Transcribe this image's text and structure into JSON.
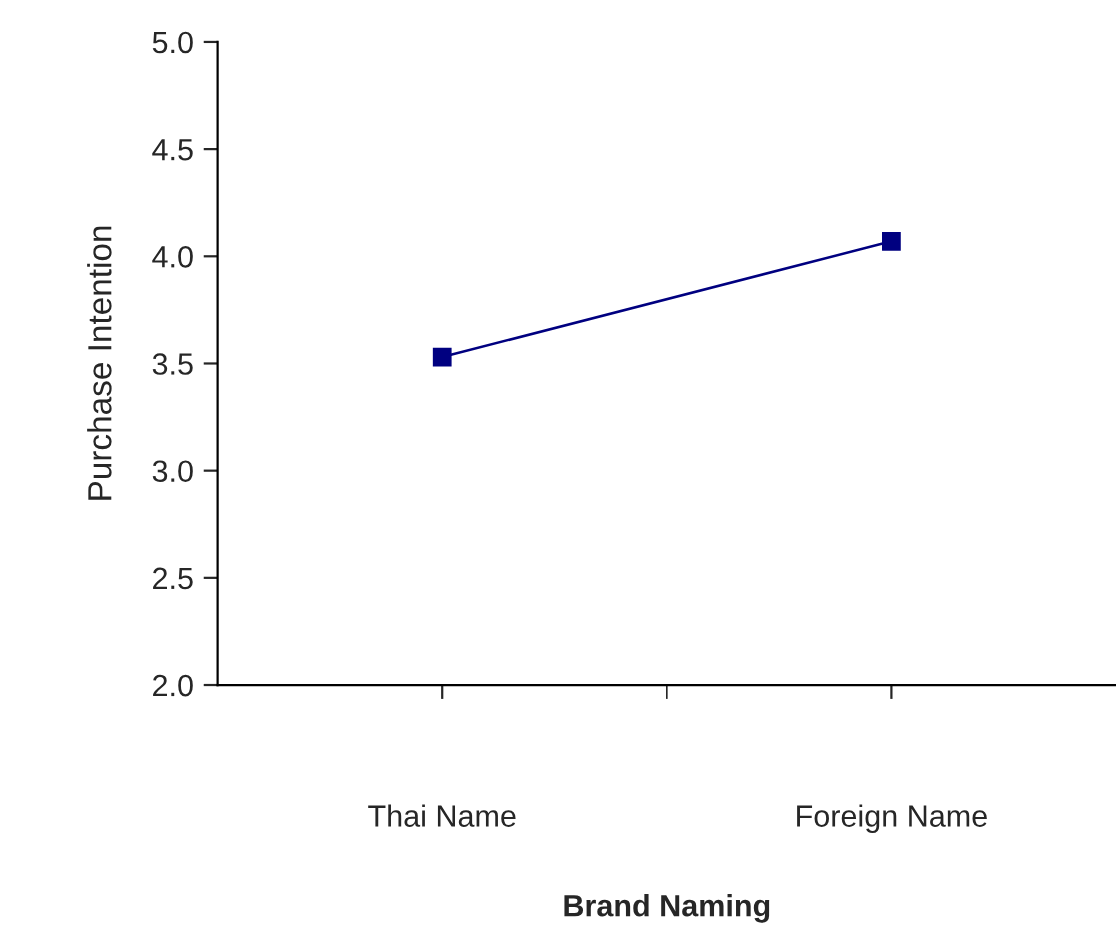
{
  "chart_data": {
    "type": "line",
    "xlabel": "Brand Naming",
    "ylabel": "Purchase Intention",
    "categories": [
      "Thai Name",
      "Foreign Name"
    ],
    "series": [
      {
        "color": "#000080",
        "values": [
          3.53,
          4.07
        ]
      }
    ],
    "ylim": [
      2.0,
      5.0
    ],
    "yticks": [
      {
        "value": 2.0,
        "label": "2.0"
      },
      {
        "value": 2.5,
        "label": "2.5"
      },
      {
        "value": 3.0,
        "label": "3.0"
      },
      {
        "value": 3.5,
        "label": "3.5"
      },
      {
        "value": 4.0,
        "label": "4.0"
      },
      {
        "value": 4.5,
        "label": "4.5"
      },
      {
        "value": 5.0,
        "label": "5.0"
      }
    ],
    "marker": "square",
    "line_style": "solid",
    "grid": false,
    "legend": false
  }
}
